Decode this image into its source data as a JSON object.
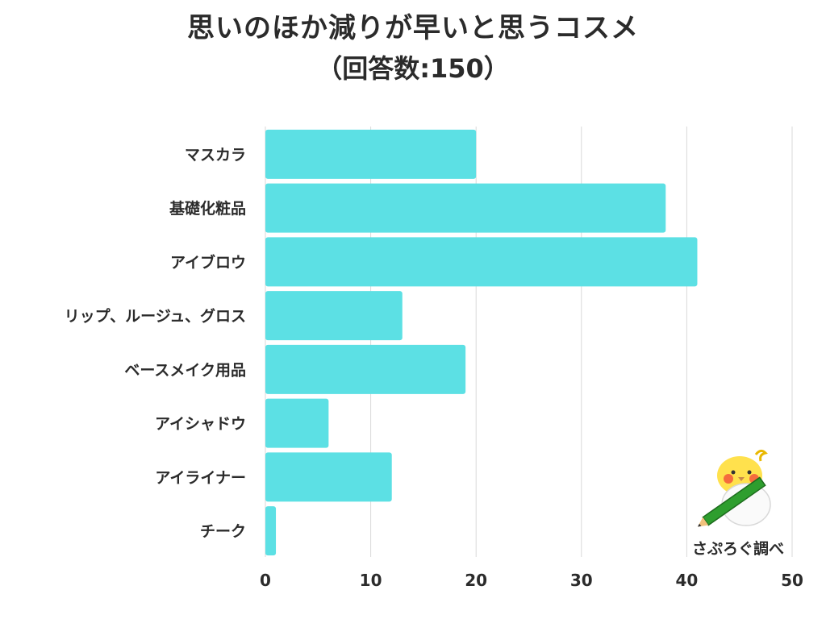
{
  "title": "思いのほか減りが早いと思うコスメ",
  "subtitle": "（回答数:150）",
  "credit": "さぷろぐ調べ",
  "colors": {
    "bar": "#5ce0e4",
    "grid": "#d9d9d9",
    "text": "#2b2b2b"
  },
  "chart_data": {
    "type": "bar",
    "orientation": "horizontal",
    "categories": [
      "マスカラ",
      "基礎化粧品",
      "アイブロウ",
      "リップ、ルージュ、グロス",
      "ベースメイク用品",
      "アイシャドウ",
      "アイライナー",
      "チーク"
    ],
    "values": [
      20,
      38,
      41,
      13,
      19,
      6,
      12,
      1
    ],
    "title": "思いのほか減りが早いと思うコスメ",
    "subtitle": "（回答数:150）",
    "xlim": [
      0,
      50
    ],
    "xticks": [
      0,
      10,
      20,
      30,
      40,
      50
    ],
    "grid": true,
    "legend": "none"
  }
}
